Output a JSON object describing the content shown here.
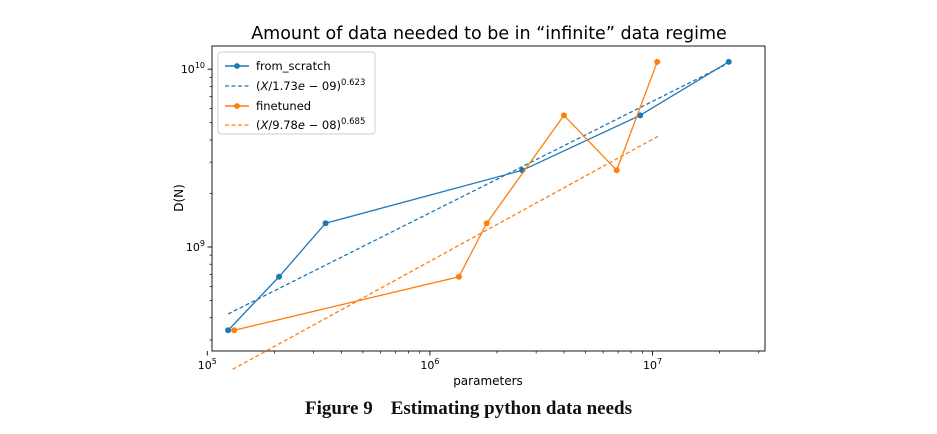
{
  "chart_data": {
    "type": "line",
    "title": "Amount of data needed to be in “infinite” data regime",
    "xlabel": "parameters",
    "ylabel": "D(N)",
    "xscale": "log",
    "yscale": "log",
    "xlim": [
      105000,
      32000000
    ],
    "ylim": [
      260000000,
      13500000000
    ],
    "x_ticks": [
      {
        "value": 100000,
        "base": "10",
        "exp": "5"
      },
      {
        "value": 1000000,
        "base": "10",
        "exp": "6"
      },
      {
        "value": 10000000,
        "base": "10",
        "exp": "7"
      }
    ],
    "y_ticks": [
      {
        "value": 1000000000,
        "base": "10",
        "exp": "9"
      },
      {
        "value": 10000000000,
        "base": "10",
        "exp": "10"
      }
    ],
    "legend_position": "top-left",
    "series": [
      {
        "name": "from_scratch",
        "kind": "line-markers",
        "color": "#1f77b4",
        "x": [
          124000,
          210000,
          340000,
          2600000,
          8800000,
          22000000
        ],
        "y": [
          340000000,
          680000000,
          1360000000,
          2700000000,
          5500000000,
          11000000000
        ]
      },
      {
        "name": "fit_from_scratch",
        "kind": "dashed",
        "color": "#1f77b4",
        "legend_text": {
          "prefix": "(",
          "var": "X",
          "mid": "/1.73",
          "e": "e",
          "minus": " − ",
          "tail": "09)",
          "exponent": "0.623"
        },
        "x": [
          124000,
          21000000
        ],
        "y": [
          420000000,
          10500000000
        ]
      },
      {
        "name": "finetuned",
        "kind": "line-markers",
        "color": "#ff7f0e",
        "x": [
          132000,
          1350000,
          1800000,
          4000000,
          6900000,
          10500000
        ],
        "y": [
          340000000,
          680000000,
          1360000000,
          5500000000,
          2700000000,
          11000000000
        ]
      },
      {
        "name": "fit_finetuned",
        "kind": "dashed",
        "color": "#ff7f0e",
        "legend_text": {
          "prefix": "(",
          "var": "X",
          "mid": "/9.78",
          "e": "e",
          "minus": " − ",
          "tail": "08)",
          "exponent": "0.685"
        },
        "x": [
          130000,
          10600000
        ],
        "y": [
          205000000,
          4200000000
        ]
      }
    ]
  },
  "caption": {
    "label": "Figure 9",
    "text": "Estimating python data needs"
  }
}
